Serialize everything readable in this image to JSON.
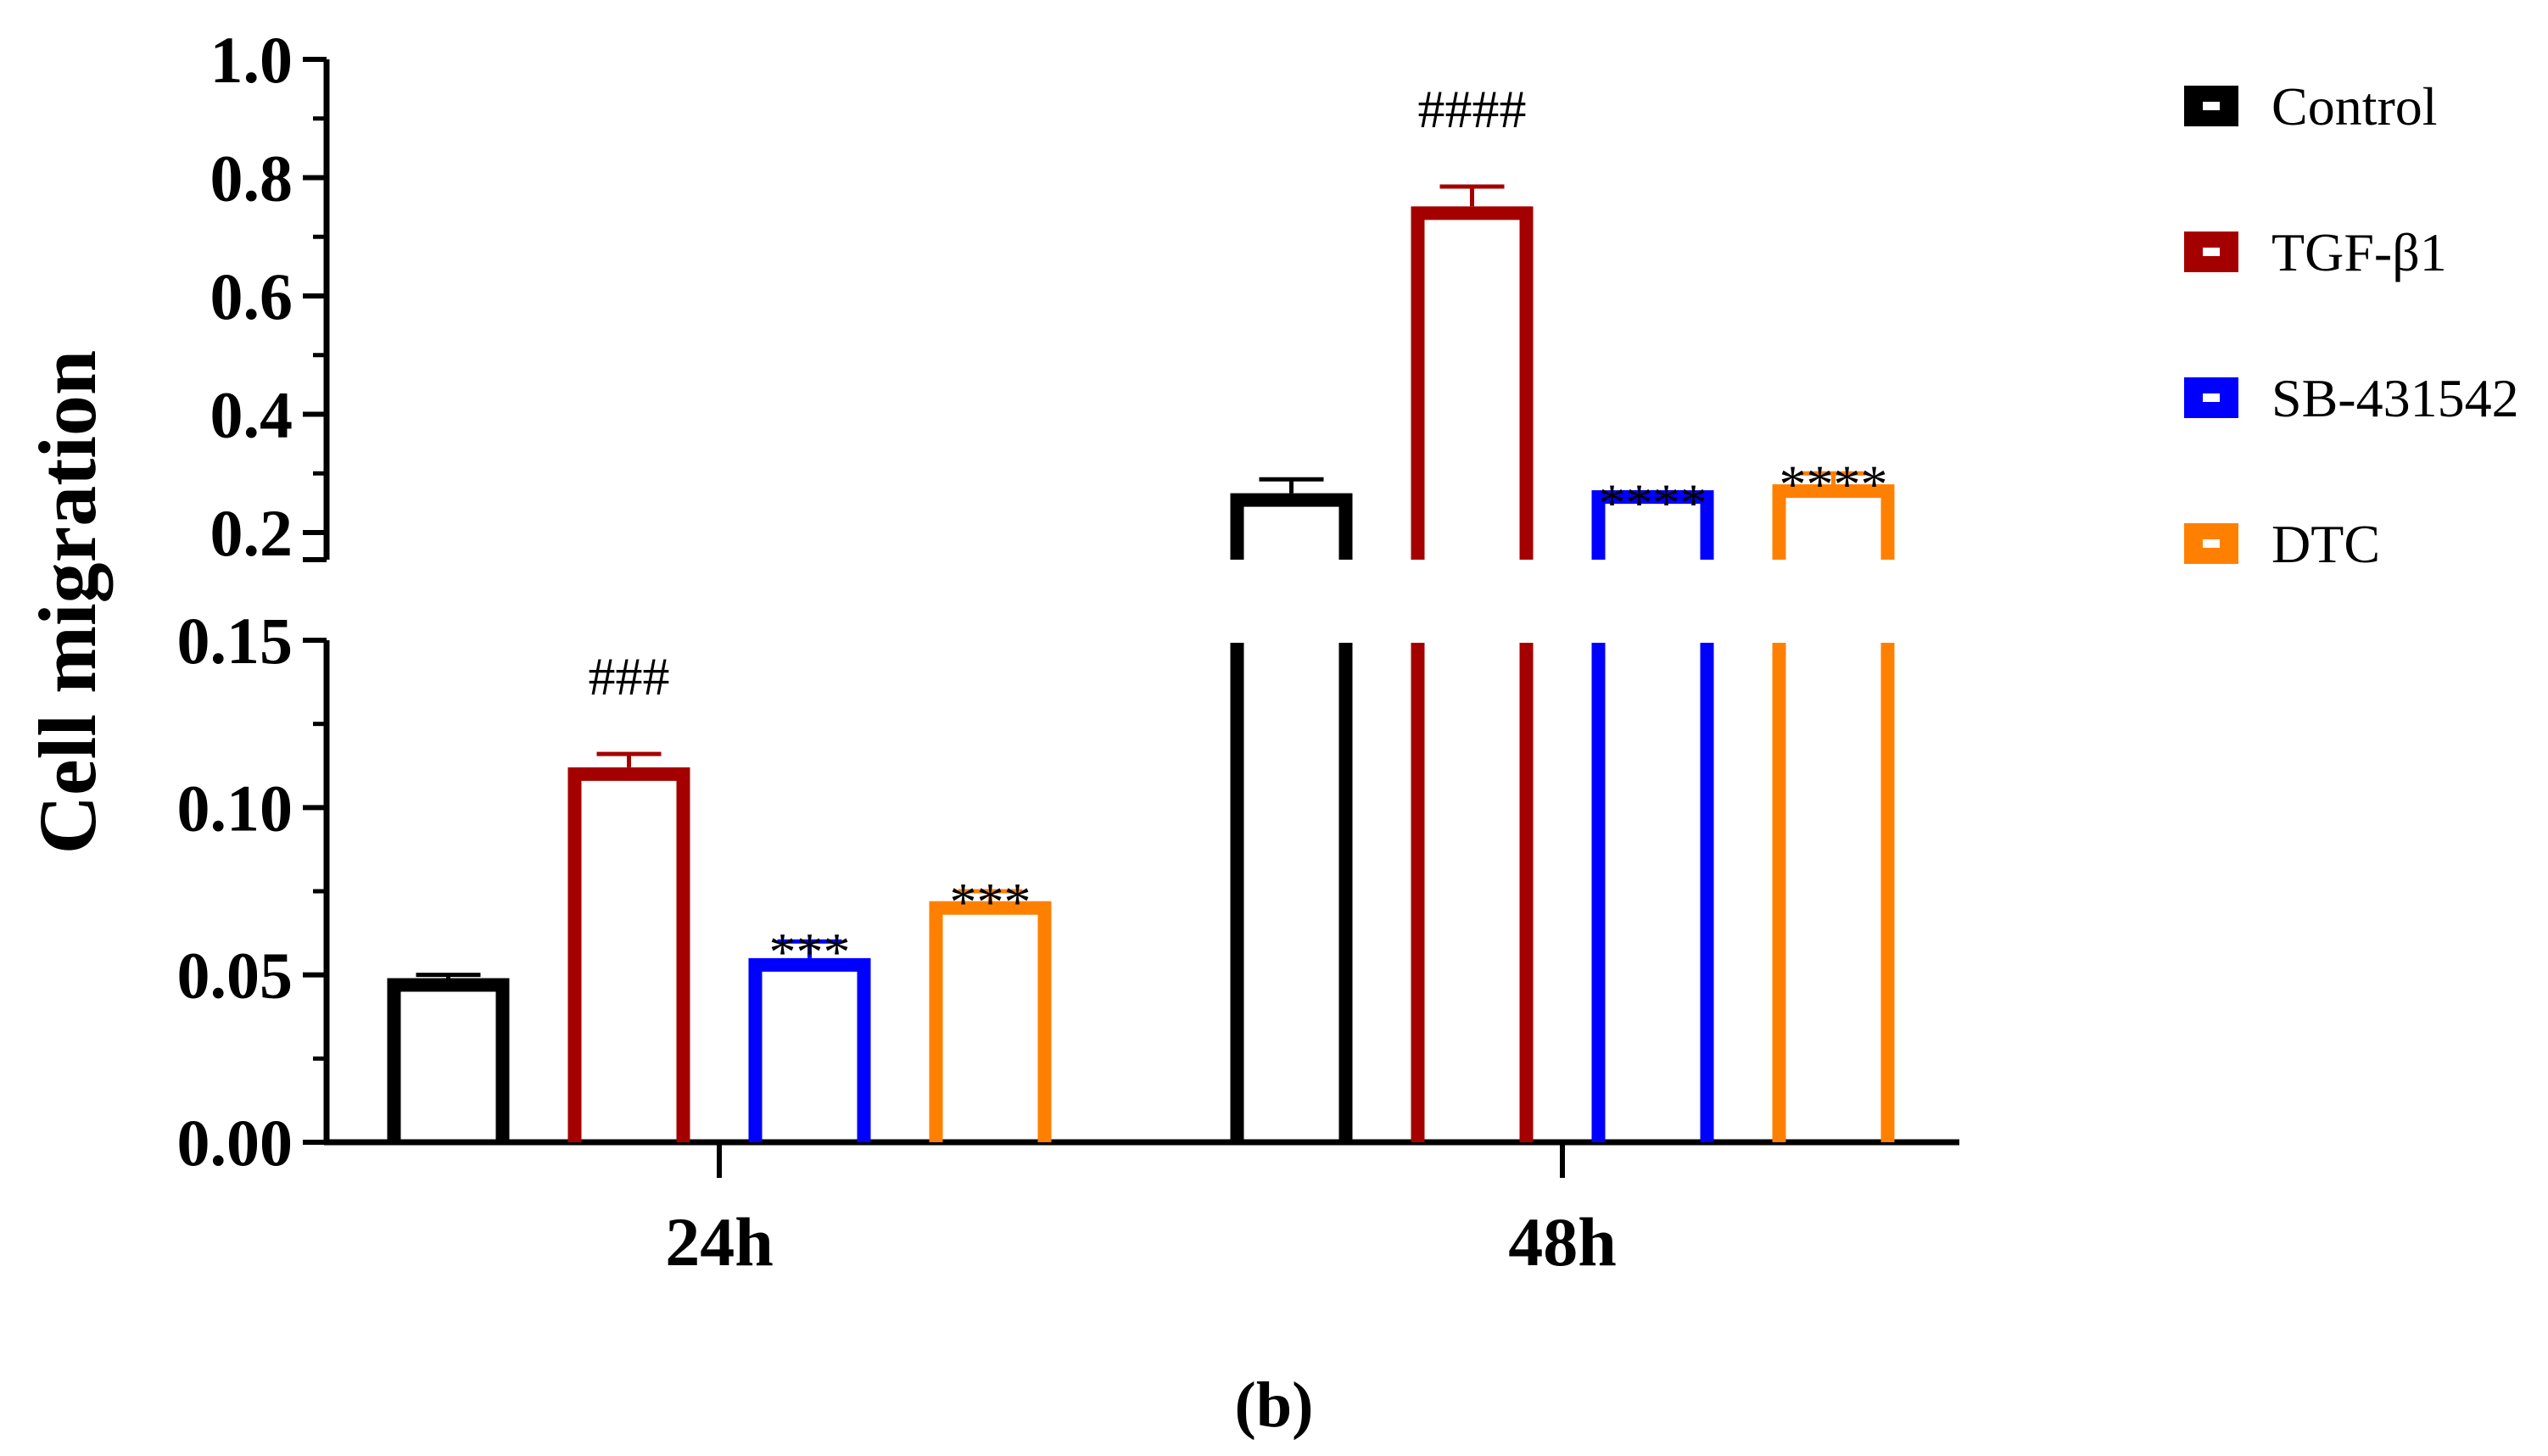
{
  "chart_data": {
    "type": "bar",
    "ylabel": "Cell migration",
    "xlabel": "",
    "panel_label": "(b)",
    "categories": [
      "24h",
      "48h"
    ],
    "y_axis": {
      "broken": true,
      "lower_segment": {
        "range": [
          0,
          0.15
        ],
        "ticks": [
          "0.00",
          "0.05",
          "0.10",
          "0.15"
        ],
        "tick_values": [
          0,
          0.05,
          0.1,
          0.15
        ]
      },
      "upper_segment": {
        "range": [
          0.15,
          1.0
        ],
        "ticks": [
          "0.2",
          "0.4",
          "0.6",
          "0.8",
          "1.0"
        ],
        "tick_values": [
          0.2,
          0.4,
          0.6,
          0.8,
          1.0
        ]
      }
    },
    "legend_position": "right",
    "series": [
      {
        "name": "Control",
        "color": "#000000",
        "values": [
          0.047,
          0.255
        ],
        "errors": [
          0.003,
          0.035
        ]
      },
      {
        "name": "TGF-β1",
        "color": "#a50000",
        "values": [
          0.11,
          0.74
        ],
        "errors": [
          0.006,
          0.045
        ]
      },
      {
        "name": "SB-431542",
        "color": "#0000ff",
        "values": [
          0.053,
          0.26
        ],
        "errors": [
          0.007,
          0.008
        ]
      },
      {
        "name": "DTC",
        "color": "#ff8000",
        "values": [
          0.07,
          0.27
        ],
        "errors": [
          0.005,
          0.03
        ]
      }
    ],
    "annotations": [
      {
        "category": "24h",
        "series": "TGF-β1",
        "text": "###"
      },
      {
        "category": "24h",
        "series": "SB-431542",
        "text": "***"
      },
      {
        "category": "24h",
        "series": "DTC",
        "text": "***"
      },
      {
        "category": "48h",
        "series": "TGF-β1",
        "text": "####"
      },
      {
        "category": "48h",
        "series": "SB-431542",
        "text": "****"
      },
      {
        "category": "48h",
        "series": "DTC",
        "text": "****"
      }
    ]
  }
}
